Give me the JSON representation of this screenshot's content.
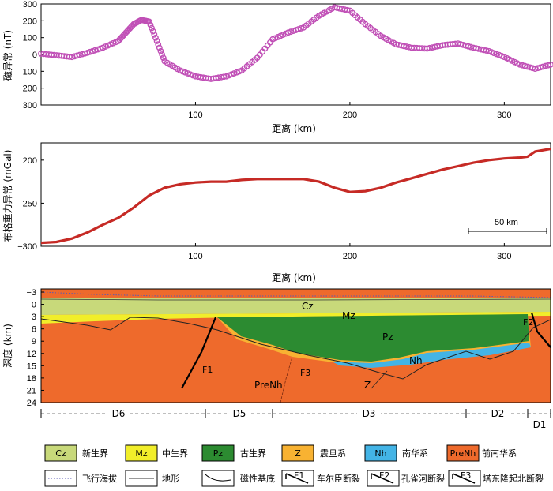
{
  "chart_data": [
    {
      "type": "scatter",
      "ylabel": "磁异常 (nT)",
      "xlabel": "距离 (km)",
      "xlim": [
        0,
        330
      ],
      "ylim": [
        -300,
        300
      ],
      "y_tick_labels": [
        "300",
        "200",
        "100",
        "0",
        "100",
        "200",
        "300"
      ],
      "x_ticks": [
        100,
        200,
        300
      ],
      "color": "#c04fb6",
      "x": [
        0,
        10,
        20,
        30,
        40,
        50,
        55,
        60,
        65,
        70,
        75,
        80,
        90,
        100,
        110,
        120,
        130,
        140,
        150,
        160,
        170,
        180,
        190,
        200,
        210,
        220,
        230,
        240,
        250,
        260,
        270,
        280,
        290,
        300,
        310,
        320,
        330
      ],
      "y": [
        5,
        -5,
        -15,
        10,
        40,
        80,
        130,
        180,
        205,
        195,
        80,
        -40,
        -95,
        -130,
        -145,
        -130,
        -95,
        -20,
        90,
        130,
        160,
        230,
        280,
        260,
        180,
        110,
        60,
        40,
        35,
        55,
        65,
        40,
        20,
        -15,
        -60,
        -85,
        -60
      ]
    },
    {
      "type": "line",
      "ylabel": "布格重力异常 (mGal)",
      "xlabel": "距离 (km)",
      "xlim": [
        0,
        330
      ],
      "ylim": [
        -300,
        -180
      ],
      "y_tick_labels": [
        "200",
        "250",
        "−300"
      ],
      "x_ticks": [
        100,
        200,
        300
      ],
      "color": "#c62a25",
      "scale_bar": "50 km",
      "x": [
        0,
        10,
        20,
        30,
        40,
        50,
        60,
        70,
        80,
        90,
        100,
        110,
        120,
        130,
        140,
        150,
        160,
        170,
        180,
        190,
        200,
        210,
        220,
        230,
        240,
        250,
        260,
        270,
        280,
        290,
        300,
        310,
        315,
        320,
        330
      ],
      "y": [
        -296,
        -295,
        -291,
        -284,
        -275,
        -267,
        -255,
        -241,
        -232,
        -228,
        -226,
        -225,
        -225,
        -223,
        -222,
        -222,
        -222,
        -222,
        -225,
        -232,
        -237,
        -236,
        -232,
        -226,
        -221,
        -216,
        -211,
        -207,
        -203,
        -200,
        -198,
        -197,
        -196,
        -190,
        -187
      ]
    },
    {
      "type": "cross-section",
      "ylabel": "深度 (km)",
      "y_tick_labels": [
        "−3",
        "0",
        "3",
        "6",
        "9",
        "12",
        "15",
        "18",
        "21",
        "24"
      ],
      "ylim": [
        -3,
        24
      ]
    }
  ],
  "section": {
    "labels": {
      "cz": "Cz",
      "mz": "Mz",
      "pz": "Pz",
      "nh": "Nh",
      "z": "Z",
      "prenh": "PreNh",
      "f1": "F1",
      "f2": "F2",
      "f3": "F3"
    },
    "segments": [
      "D6",
      "D5",
      "D3",
      "D2",
      "D1"
    ]
  },
  "legend": {
    "items": [
      {
        "code": "Cz",
        "name": "新生界",
        "color": "#c8d97a"
      },
      {
        "code": "Mz",
        "name": "中生界",
        "color": "#f1ee2a"
      },
      {
        "code": "Pz",
        "name": "古生界",
        "color": "#2c8b31"
      },
      {
        "code": "Z",
        "name": "震旦系",
        "color": "#f8b232"
      },
      {
        "code": "Nh",
        "name": "南华系",
        "color": "#43b4e6"
      },
      {
        "code": "PreNh",
        "name": "前南华系",
        "color": "#ee6a2c"
      }
    ],
    "lines": [
      {
        "name": "飞行海拔",
        "icon": "dotted-line-icon"
      },
      {
        "name": "地形",
        "icon": "terrain-line-icon"
      },
      {
        "name": "磁性基底",
        "icon": "basement-line-icon"
      },
      {
        "code": "F1",
        "name": "车尔臣断裂",
        "icon": "fault-icon"
      },
      {
        "code": "F2",
        "name": "孔雀河断裂",
        "icon": "fault-icon"
      },
      {
        "code": "F3",
        "name": "塔东隆起北断裂",
        "icon": "fault-icon"
      }
    ]
  }
}
